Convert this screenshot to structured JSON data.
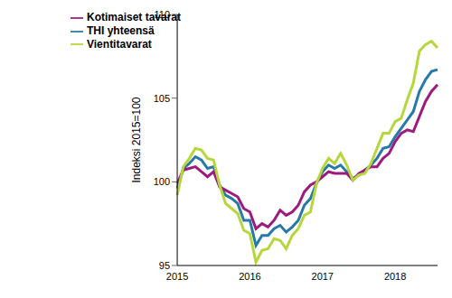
{
  "chart_data": {
    "type": "line",
    "y_label": "Indeksi 2015=100",
    "categories": [
      "2015",
      null,
      null,
      null,
      null,
      null,
      null,
      null,
      null,
      null,
      null,
      null,
      "2016",
      null,
      null,
      null,
      null,
      null,
      null,
      null,
      null,
      null,
      null,
      null,
      "2017",
      null,
      null,
      null,
      null,
      null,
      null,
      null,
      null,
      null,
      null,
      null,
      "2018",
      null,
      null,
      null,
      null,
      null,
      null,
      null
    ],
    "series": [
      {
        "name": "THI yhteensä",
        "color": "#2779a7",
        "values": [
          99.6,
          100.8,
          101.1,
          101.5,
          101.3,
          100.8,
          100.9,
          99.8,
          99.2,
          99.0,
          98.7,
          97.7,
          97.7,
          96.2,
          96.8,
          96.8,
          97.2,
          97.4,
          97.0,
          97.3,
          97.7,
          98.6,
          99.0,
          99.9,
          100.6,
          101.0,
          100.8,
          101.0,
          100.6,
          100.2,
          100.4,
          100.7,
          101.0,
          101.4,
          102.0,
          102.1,
          102.7,
          103.2,
          103.7,
          104.2,
          105.4,
          106.1,
          106.6,
          106.7
        ]
      },
      {
        "name": "Kotimaiset tavarat",
        "color": "#9c1b7d",
        "values": [
          99.9,
          100.7,
          100.8,
          100.9,
          100.6,
          100.3,
          100.6,
          99.7,
          99.5,
          99.3,
          99.1,
          98.4,
          98.2,
          97.2,
          97.5,
          97.3,
          97.7,
          98.3,
          98.0,
          98.2,
          98.6,
          99.4,
          99.8,
          100.0,
          100.3,
          100.6,
          100.5,
          100.5,
          100.5,
          100.1,
          100.5,
          100.7,
          100.9,
          100.9,
          101.4,
          101.7,
          102.4,
          102.9,
          103.1,
          103.0,
          103.9,
          104.8,
          105.4,
          105.8
        ]
      },
      {
        "name": "Vientitavarat",
        "color": "#b6d63c",
        "values": [
          99.2,
          100.9,
          101.4,
          102.0,
          101.9,
          101.4,
          101.3,
          99.8,
          98.7,
          98.4,
          98.1,
          97.1,
          96.9,
          95.2,
          95.9,
          96.0,
          96.6,
          96.5,
          96.0,
          96.8,
          97.2,
          98.0,
          98.2,
          99.9,
          100.8,
          101.4,
          101.1,
          101.7,
          101.0,
          100.1,
          100.4,
          100.5,
          101.1,
          102.0,
          102.9,
          102.9,
          103.6,
          103.8,
          104.9,
          105.9,
          107.8,
          108.2,
          108.4,
          108.0
        ]
      }
    ],
    "ylim": [
      95,
      110
    ],
    "yticks": [
      95,
      100,
      105,
      110
    ],
    "grid": false,
    "legend": "upper left"
  }
}
